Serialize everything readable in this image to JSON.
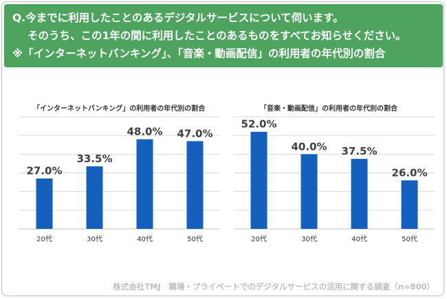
{
  "question": {
    "line1": "Q.今までに利用したことのあるデジタルサービスについて伺います。",
    "line2": "そのうち、この1年の間に利用したことのあるものをすべてお知らせください。",
    "line3": "※「インターネットバンキング」、「音楽・動画配信」の利用者の年代別の割合"
  },
  "chart_data": [
    {
      "type": "bar",
      "title": "「インターネットバンキング」の利用者の年代別の割合",
      "categories": [
        "20代",
        "30代",
        "40代",
        "50代"
      ],
      "values": [
        27.0,
        33.5,
        48.0,
        47.0
      ],
      "value_labels": [
        "27.0%",
        "33.5%",
        "48.0%",
        "47.0%"
      ],
      "ylim": [
        0,
        60
      ],
      "grid": true,
      "bar_color": "#1560bd"
    },
    {
      "type": "bar",
      "title": "「音楽・動画配信」の利用者の年代別の割合",
      "categories": [
        "20代",
        "30代",
        "40代",
        "50代"
      ],
      "values": [
        52.0,
        40.0,
        37.5,
        26.0
      ],
      "value_labels": [
        "52.0%",
        "40.0%",
        "37.5%",
        "26.0%"
      ],
      "ylim": [
        0,
        60
      ],
      "grid": true,
      "bar_color": "#1560bd"
    }
  ],
  "footer": "株式会社TMJ　職場・プライベートでのデジタルサービスの活用に関する調査（n=800）",
  "colors": {
    "banner": "#4ea35e",
    "bar": "#1560bd",
    "grid": "#d9d9d9",
    "label": "#404040"
  }
}
